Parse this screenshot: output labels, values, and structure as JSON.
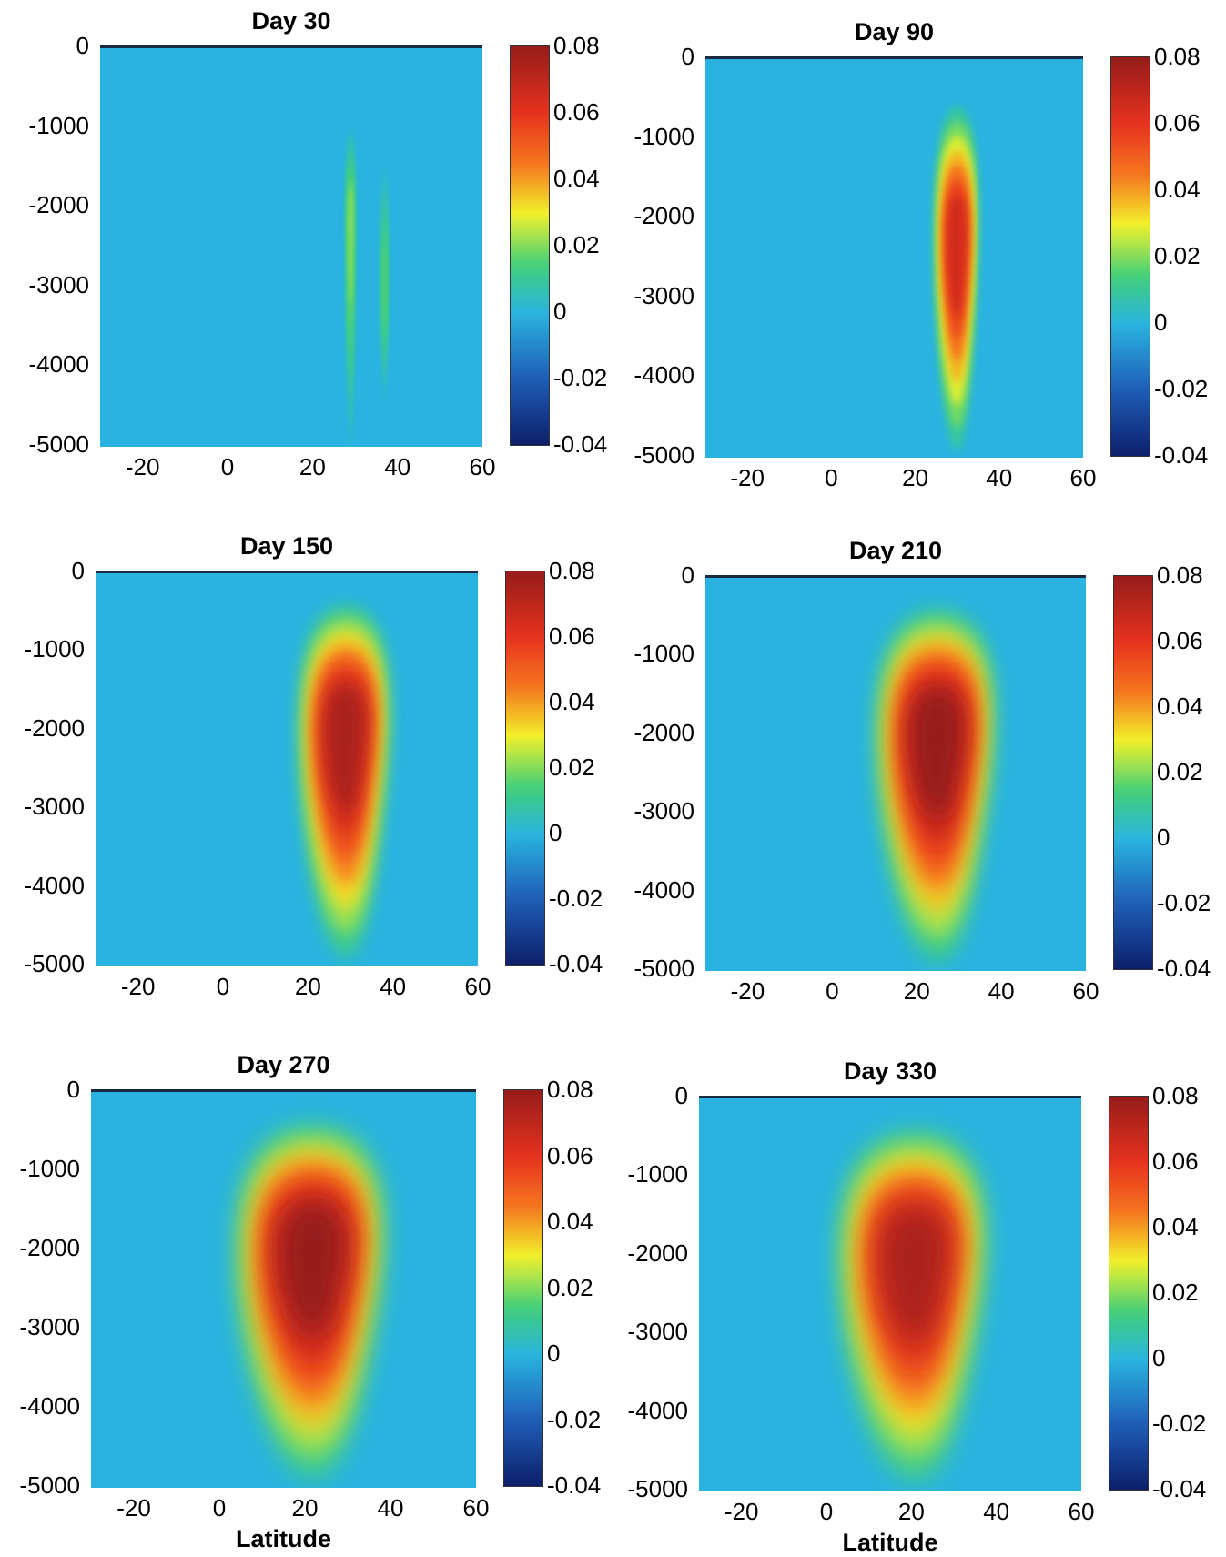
{
  "chart_data": [
    {
      "type": "heatmap",
      "title": "Day 30",
      "xlabel": "",
      "ylabel": "",
      "xlim": [
        -30,
        60
      ],
      "ylim": [
        -5000,
        0
      ],
      "x_ticks": [
        "-20",
        "0",
        "20",
        "40",
        "60"
      ],
      "y_ticks": [
        "0",
        "-1000",
        "-2000",
        "-3000",
        "-4000",
        "-5000"
      ],
      "colorbar": {
        "range": [
          -0.04,
          0.08
        ],
        "ticks": [
          "0.08",
          "0.06",
          "0.04",
          "0.02",
          "0",
          "-0.02",
          "-0.04"
        ],
        "colormap": "jet"
      },
      "features": [
        {
          "lat_center": 29,
          "lat_halfwidth": 1.2,
          "depth_top": -1000,
          "depth_bottom": -5000,
          "depth_core": -2200,
          "peak": 0.02
        },
        {
          "lat_center": 37,
          "lat_halfwidth": 1.0,
          "depth_top": -1500,
          "depth_bottom": -4400,
          "depth_core": -3000,
          "peak": 0.015
        }
      ]
    },
    {
      "type": "heatmap",
      "title": "Day 90",
      "xlabel": "",
      "ylabel": "",
      "xlim": [
        -30,
        60
      ],
      "ylim": [
        -5000,
        0
      ],
      "x_ticks": [
        "-20",
        "0",
        "20",
        "40",
        "60"
      ],
      "y_ticks": [
        "0",
        "-1000",
        "-2000",
        "-3000",
        "-4000",
        "-5000"
      ],
      "colorbar": {
        "range": [
          -0.04,
          0.08
        ],
        "ticks": [
          "0.08",
          "0.06",
          "0.04",
          "0.02",
          "0",
          "-0.02",
          "-0.04"
        ],
        "colormap": "jet"
      },
      "features": [
        {
          "lat_center": 30,
          "lat_halfwidth": 5,
          "depth_top": -600,
          "depth_bottom": -4900,
          "depth_core": -2300,
          "peak": 0.065
        }
      ]
    },
    {
      "type": "heatmap",
      "title": "Day 150",
      "xlabel": "",
      "ylabel": "",
      "xlim": [
        -30,
        60
      ],
      "ylim": [
        -5000,
        0
      ],
      "x_ticks": [
        "-20",
        "0",
        "20",
        "40",
        "60"
      ],
      "y_ticks": [
        "0",
        "-1000",
        "-2000",
        "-3000",
        "-4000",
        "-5000"
      ],
      "colorbar": {
        "range": [
          -0.04,
          0.08
        ],
        "ticks": [
          "0.08",
          "0.06",
          "0.04",
          "0.02",
          "0",
          "-0.02",
          "-0.04"
        ],
        "colormap": "jet"
      },
      "features": [
        {
          "lat_center": 29,
          "lat_halfwidth": 10,
          "depth_top": -400,
          "depth_bottom": -4900,
          "depth_core": -2000,
          "peak": 0.075
        }
      ]
    },
    {
      "type": "heatmap",
      "title": "Day 210",
      "xlabel": "",
      "ylabel": "",
      "xlim": [
        -30,
        60
      ],
      "ylim": [
        -5000,
        0
      ],
      "x_ticks": [
        "-20",
        "0",
        "20",
        "40",
        "60"
      ],
      "y_ticks": [
        "0",
        "-1000",
        "-2000",
        "-3000",
        "-4000",
        "-5000"
      ],
      "colorbar": {
        "range": [
          -0.04,
          0.08
        ],
        "ticks": [
          "0.08",
          "0.06",
          "0.04",
          "0.02",
          "0",
          "-0.02",
          "-0.04"
        ],
        "colormap": "jet"
      },
      "features": [
        {
          "lat_center": 25,
          "lat_halfwidth": 13,
          "depth_top": -400,
          "depth_bottom": -4900,
          "depth_core": -2000,
          "peak": 0.08
        }
      ]
    },
    {
      "type": "heatmap",
      "title": "Day 270",
      "xlabel": "Latitude",
      "ylabel": "",
      "xlim": [
        -30,
        60
      ],
      "ylim": [
        -5000,
        0
      ],
      "x_ticks": [
        "-20",
        "0",
        "20",
        "40",
        "60"
      ],
      "y_ticks": [
        "0",
        "-1000",
        "-2000",
        "-3000",
        "-4000",
        "-5000"
      ],
      "colorbar": {
        "range": [
          -0.04,
          0.08
        ],
        "ticks": [
          "0.08",
          "0.06",
          "0.04",
          "0.02",
          "0",
          "-0.02",
          "-0.04"
        ],
        "colormap": "jet"
      },
      "features": [
        {
          "lat_center": 22,
          "lat_halfwidth": 16,
          "depth_top": -400,
          "depth_bottom": -4900,
          "depth_core": -2000,
          "peak": 0.08
        }
      ]
    },
    {
      "type": "heatmap",
      "title": "Day 330",
      "xlabel": "Latitude",
      "ylabel": "",
      "xlim": [
        -30,
        60
      ],
      "ylim": [
        -5000,
        0
      ],
      "x_ticks": [
        "-20",
        "0",
        "20",
        "40",
        "60"
      ],
      "y_ticks": [
        "0",
        "-1000",
        "-2000",
        "-3000",
        "-4000",
        "-5000"
      ],
      "colorbar": {
        "range": [
          -0.04,
          0.08
        ],
        "ticks": [
          "0.08",
          "0.06",
          "0.04",
          "0.02",
          "0",
          "-0.02",
          "-0.04"
        ],
        "colormap": "jet"
      },
      "features": [
        {
          "lat_center": 21,
          "lat_halfwidth": 16,
          "depth_top": -400,
          "depth_bottom": -4900,
          "depth_core": -2000,
          "peak": 0.075
        }
      ]
    }
  ],
  "colors": {
    "background": "#2ab3e0",
    "jet": [
      "#0d1f6b",
      "#1f5fb8",
      "#2ab3e0",
      "#3fcf7a",
      "#f2f22a",
      "#f57a1f",
      "#e8321e",
      "#a8221c"
    ]
  }
}
